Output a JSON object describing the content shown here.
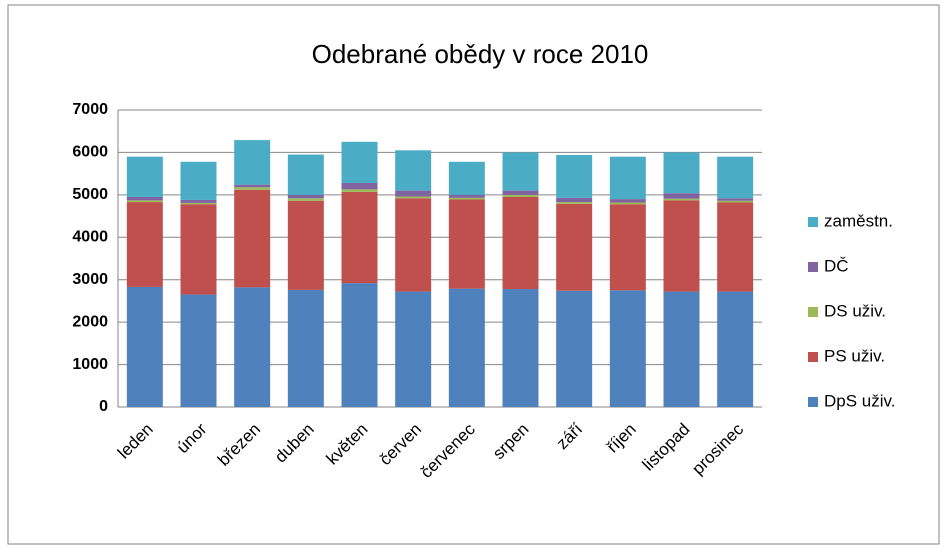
{
  "chart_data": {
    "type": "stacked_bar",
    "title": "Odebrané obědy v roce 2010",
    "categories": [
      "leden",
      "únor",
      "březen",
      "duben",
      "květen",
      "červen",
      "červenec",
      "srpen",
      "září",
      "říjen",
      "listopad",
      "prosinec"
    ],
    "series": [
      {
        "name": "DpS uživ.",
        "color": "#4f81bd",
        "values": [
          2830,
          2650,
          2820,
          2760,
          2920,
          2720,
          2790,
          2780,
          2740,
          2750,
          2720,
          2720
        ]
      },
      {
        "name": "PS uživ.",
        "color": "#c0504d",
        "values": [
          2000,
          2130,
          2300,
          2100,
          2150,
          2200,
          2100,
          2170,
          2050,
          2030,
          2150,
          2100
        ]
      },
      {
        "name": "DS uživ.",
        "color": "#9bbb59",
        "values": [
          40,
          30,
          60,
          60,
          60,
          40,
          40,
          50,
          40,
          40,
          40,
          40
        ]
      },
      {
        "name": "DČ",
        "color": "#8064a2",
        "values": [
          80,
          70,
          60,
          80,
          150,
          140,
          70,
          100,
          100,
          80,
          130,
          60
        ]
      },
      {
        "name": "zaměstn.",
        "color": "#4bacc6",
        "values": [
          950,
          900,
          1050,
          950,
          970,
          950,
          780,
          900,
          1010,
          1000,
          960,
          980
        ]
      }
    ],
    "ylim": [
      0,
      7000
    ],
    "yticks": [
      0,
      1000,
      2000,
      3000,
      4000,
      5000,
      6000,
      7000
    ],
    "grid": true,
    "legend": "right"
  }
}
